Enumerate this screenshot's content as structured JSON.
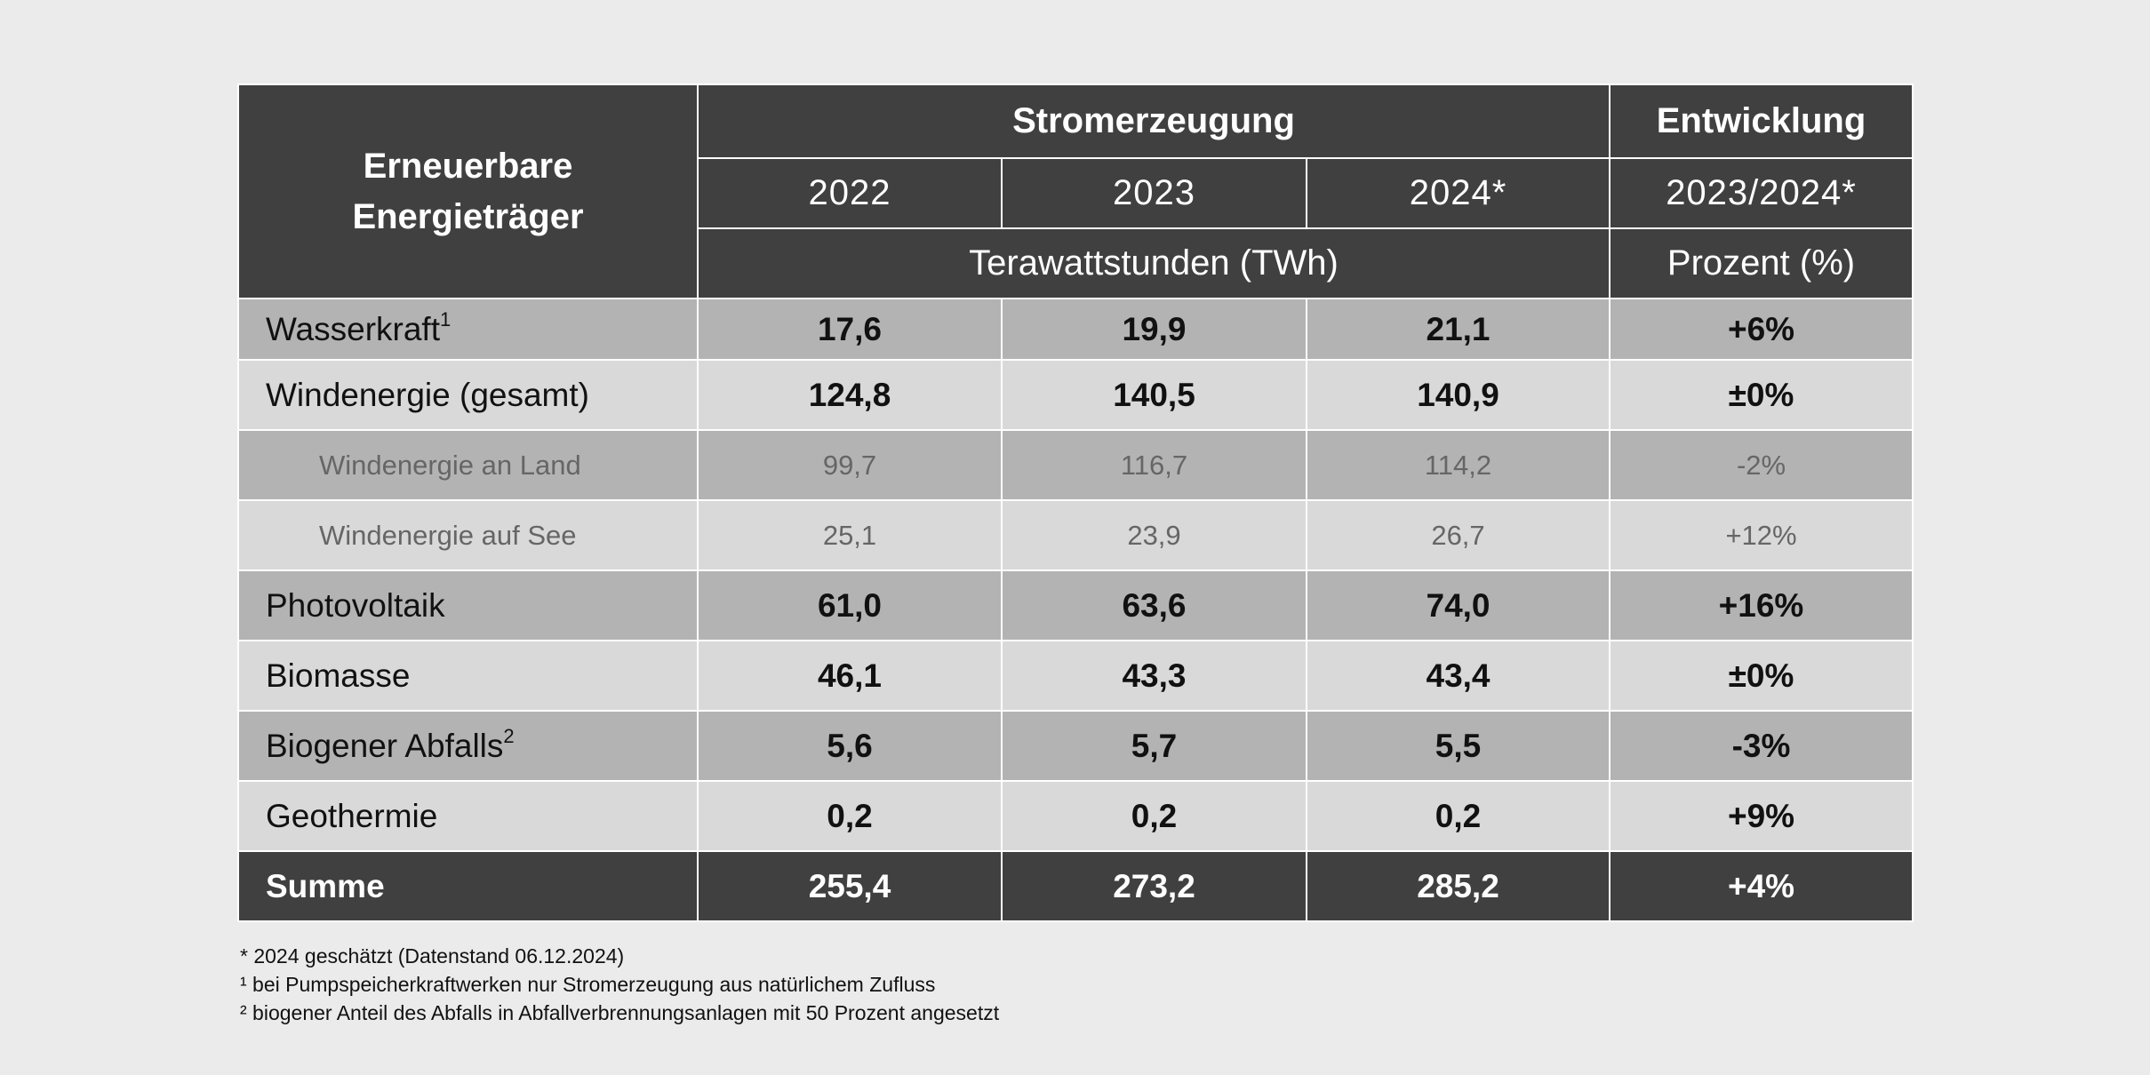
{
  "header": {
    "label_lines": [
      "Erneuerbare",
      "Energieträger"
    ],
    "group_generation": "Stromerzeugung",
    "group_change": "Entwicklung",
    "years": [
      "2022",
      "2023",
      "2024*"
    ],
    "change_period": "2023/2024*",
    "unit_generation": "Terawattstunden (TWh)",
    "unit_change": "Prozent (%)"
  },
  "rows": [
    {
      "label": "Wasserkraft",
      "note": "1",
      "values": [
        "17,6",
        "19,9",
        "21,1"
      ],
      "change": "+6%"
    },
    {
      "label": "Windenergie (gesamt)",
      "values": [
        "124,8",
        "140,5",
        "140,9"
      ],
      "change": "±0%"
    },
    {
      "label": "Windenergie an Land",
      "values": [
        "99,7",
        "116,7",
        "114,2"
      ],
      "change": "-2%"
    },
    {
      "label": "Windenergie auf See",
      "values": [
        "25,1",
        "23,9",
        "26,7"
      ],
      "change": "+12%"
    },
    {
      "label": "Photovoltaik",
      "values": [
        "61,0",
        "63,6",
        "74,0"
      ],
      "change": "+16%"
    },
    {
      "label": "Biomasse",
      "values": [
        "46,1",
        "43,3",
        "43,4"
      ],
      "change": "±0%"
    },
    {
      "label": "Biogener Abfalls",
      "note": "2",
      "values": [
        "5,6",
        "5,7",
        "5,5"
      ],
      "change": "-3%"
    },
    {
      "label": "Geothermie",
      "values": [
        "0,2",
        "0,2",
        "0,2"
      ],
      "change": "+9%"
    },
    {
      "label": "Summe",
      "values": [
        "255,4",
        "273,2",
        "285,2"
      ],
      "change": "+4%"
    }
  ],
  "footnotes": [
    "* 2024 geschätzt (Datenstand 06.12.2024)",
    "¹ bei Pumpspeicherkraftwerken nur Stromerzeugung aus natürlichem Zufluss",
    "² biogener Anteil des Abfalls in Abfallverbrennungsanlagen mit 50 Prozent angesetzt"
  ]
}
